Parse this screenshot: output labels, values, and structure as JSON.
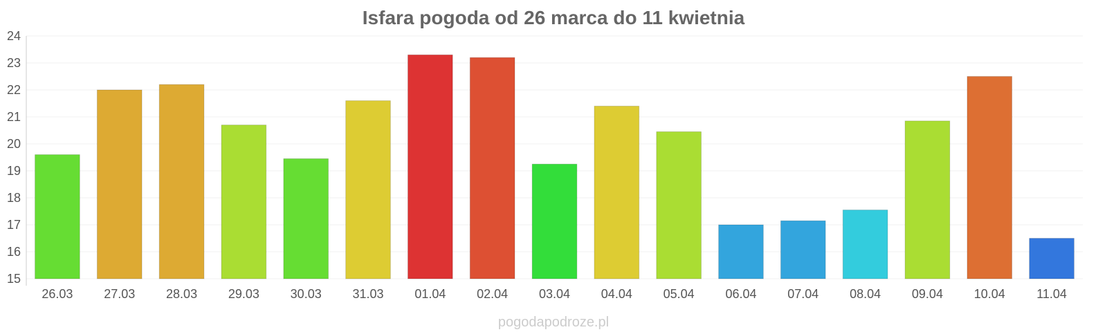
{
  "chart_data": {
    "type": "bar",
    "title": "Isfara pogoda od 26 marca do 11 kwietnia",
    "xlabel": "",
    "ylabel": "",
    "ylim": [
      15,
      24
    ],
    "yticks": [
      15,
      16,
      17,
      18,
      19,
      20,
      21,
      22,
      23,
      24
    ],
    "grid": true,
    "categories": [
      "26.03",
      "27.03",
      "28.03",
      "29.03",
      "30.03",
      "31.03",
      "01.04",
      "02.04",
      "03.04",
      "04.04",
      "05.04",
      "06.04",
      "07.04",
      "08.04",
      "09.04",
      "10.04",
      "11.04"
    ],
    "values": [
      19.6,
      22.0,
      22.2,
      20.7,
      19.45,
      21.6,
      23.3,
      23.2,
      19.25,
      21.4,
      20.45,
      17.0,
      17.15,
      17.55,
      20.85,
      22.5,
      16.5
    ],
    "colors": [
      "#66dd33",
      "#ddaa33",
      "#ddaa33",
      "#aadd33",
      "#66dd33",
      "#ddcc33",
      "#dd3333",
      "#dd5033",
      "#33dd3a",
      "#ddcc33",
      "#aadd33",
      "#33a5dd",
      "#33a5dd",
      "#33ccdd",
      "#aadd33",
      "#dd6f33",
      "#3377dd"
    ]
  },
  "footer": "pogodapodroze.pl"
}
